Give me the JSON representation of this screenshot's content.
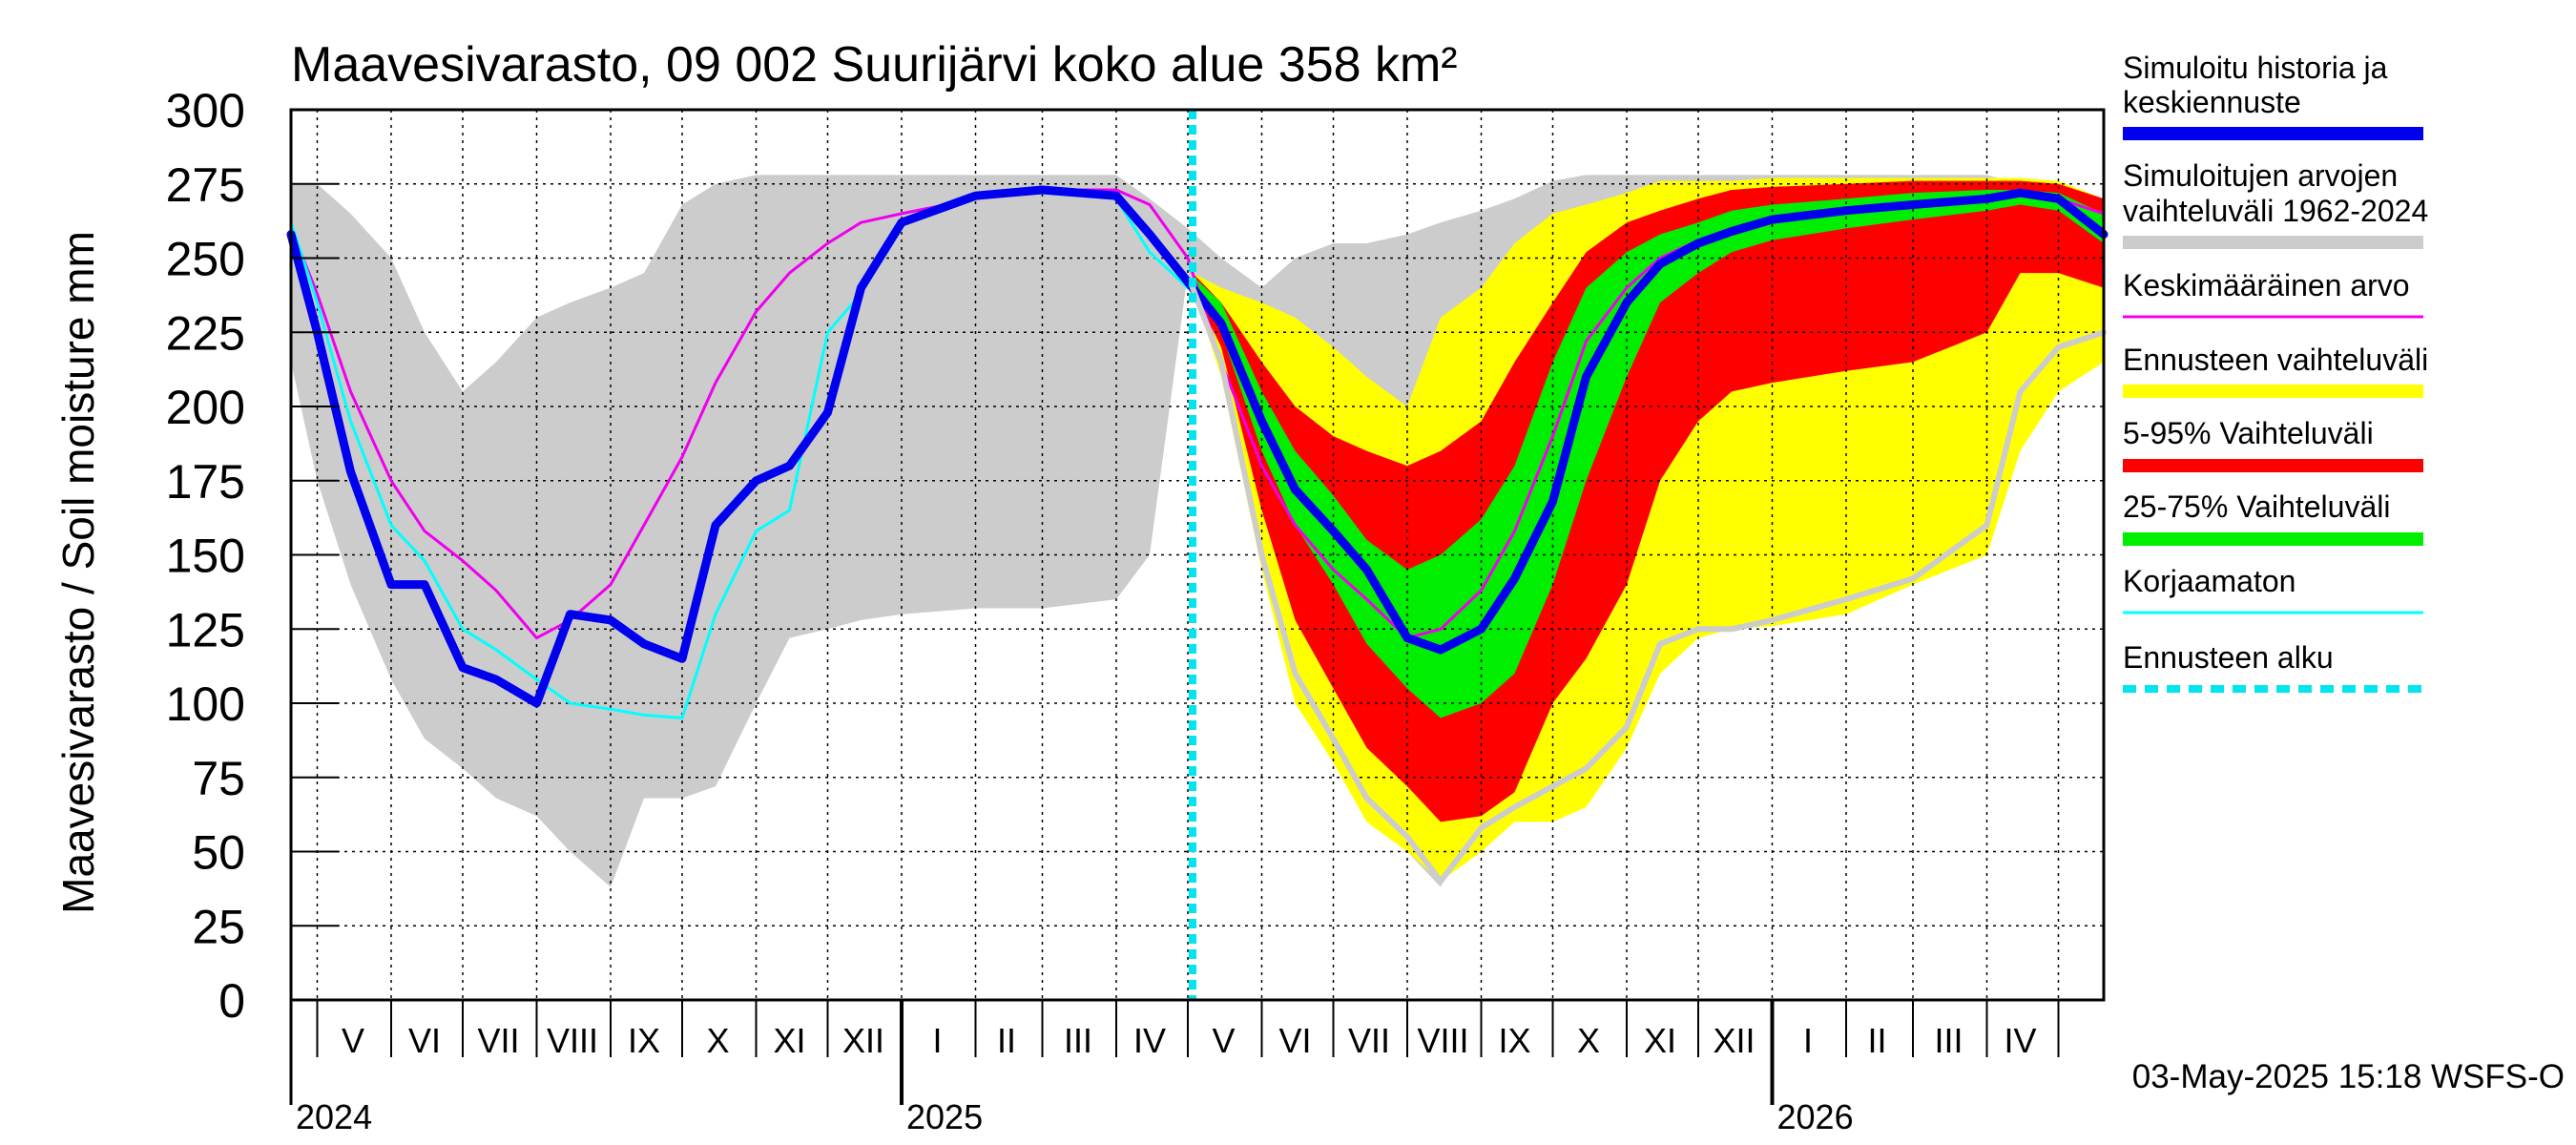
{
  "chart_data": {
    "type": "area",
    "title": "Maavesivarasto, 09 002 Suurijärvi koko alue 358 km²",
    "ylabel": "Maavesivarasto / Soil moisture   mm",
    "xlabel": "",
    "ylim": [
      0,
      300
    ],
    "y_ticks": [
      0,
      25,
      50,
      75,
      100,
      125,
      150,
      175,
      200,
      225,
      250,
      275,
      300
    ],
    "grid": true,
    "legend_position": "right",
    "x_start": "2024-04-20",
    "x_end": "2026-05-20",
    "forecast_start": "2025-05-03",
    "month_labels": [
      {
        "label": "V",
        "date": "2024-05-16"
      },
      {
        "label": "VI",
        "date": "2024-06-15"
      },
      {
        "label": "VII",
        "date": "2024-07-16"
      },
      {
        "label": "VIII",
        "date": "2024-08-16"
      },
      {
        "label": "IX",
        "date": "2024-09-15"
      },
      {
        "label": "X",
        "date": "2024-10-16"
      },
      {
        "label": "XI",
        "date": "2024-11-15"
      },
      {
        "label": "XII",
        "date": "2024-12-16"
      },
      {
        "label": "I",
        "date": "2025-01-16"
      },
      {
        "label": "II",
        "date": "2025-02-14"
      },
      {
        "label": "III",
        "date": "2025-03-16"
      },
      {
        "label": "IV",
        "date": "2025-04-15"
      },
      {
        "label": "V",
        "date": "2025-05-16"
      },
      {
        "label": "VI",
        "date": "2025-06-15"
      },
      {
        "label": "VII",
        "date": "2025-07-16"
      },
      {
        "label": "VIII",
        "date": "2025-08-16"
      },
      {
        "label": "IX",
        "date": "2025-09-15"
      },
      {
        "label": "X",
        "date": "2025-10-16"
      },
      {
        "label": "XI",
        "date": "2025-11-15"
      },
      {
        "label": "XII",
        "date": "2025-12-16"
      },
      {
        "label": "I",
        "date": "2026-01-16"
      },
      {
        "label": "II",
        "date": "2026-02-14"
      },
      {
        "label": "III",
        "date": "2026-03-16"
      },
      {
        "label": "IV",
        "date": "2026-04-15"
      }
    ],
    "year_labels": [
      {
        "label": "2024",
        "date": "2024-04-20"
      },
      {
        "label": "2025",
        "date": "2025-01-01"
      },
      {
        "label": "2026",
        "date": "2026-01-01"
      }
    ],
    "timestamp": "03-May-2025 15:18 WSFS-O",
    "legend": [
      {
        "label": "Simuloitu historia ja\nkeskiennuste",
        "color": "#0000ee",
        "style": "thick"
      },
      {
        "label": "Simuloitujen arvojen\nvaihteluväli 1962-2024",
        "color": "#cccccc",
        "style": "thick"
      },
      {
        "label": "Keskimääräinen arvo",
        "color": "#ee00ee",
        "style": "thin"
      },
      {
        "label": "Ennusteen vaihteluväli",
        "color": "#ffff00",
        "style": "thick"
      },
      {
        "label": "5-95% Vaihteluväli",
        "color": "#ff0000",
        "style": "thick"
      },
      {
        "label": "25-75% Vaihteluväli",
        "color": "#00ee00",
        "style": "thick"
      },
      {
        "label": "Korjaamaton",
        "color": "#00ffff",
        "style": "thin"
      },
      {
        "label": "Ennusteen alku",
        "color": "#00e5ee",
        "style": "dashed"
      }
    ],
    "series": [
      {
        "name": "Simuloitujen arvojen vaihteluväli 1962-2024",
        "kind": "band",
        "color": "#cccccc",
        "x": [
          "2024-04-20",
          "2024-05-01",
          "2024-05-15",
          "2024-06-01",
          "2024-06-15",
          "2024-07-01",
          "2024-07-15",
          "2024-08-01",
          "2024-08-15",
          "2024-09-01",
          "2024-09-15",
          "2024-10-01",
          "2024-10-15",
          "2024-11-01",
          "2024-11-15",
          "2024-12-01",
          "2024-12-15",
          "2025-01-01",
          "2025-02-01",
          "2025-03-01",
          "2025-04-01",
          "2025-04-15",
          "2025-05-01",
          "2025-05-15",
          "2025-06-01",
          "2025-06-15",
          "2025-07-01",
          "2025-07-15",
          "2025-08-01",
          "2025-08-15",
          "2025-09-01",
          "2025-09-15",
          "2025-10-01",
          "2025-10-15",
          "2025-11-01",
          "2025-11-15",
          "2025-12-01",
          "2025-12-15",
          "2026-01-01",
          "2026-02-01",
          "2026-03-01",
          "2026-04-01",
          "2026-04-15",
          "2026-05-01",
          "2026-05-20"
        ],
        "low": [
          215,
          175,
          140,
          108,
          88,
          78,
          68,
          62,
          50,
          38,
          68,
          68,
          72,
          100,
          122,
          125,
          128,
          130,
          132,
          132,
          135,
          150,
          245,
          215,
          150,
          110,
          88,
          65,
          50,
          38,
          68,
          72,
          76,
          80,
          92,
          120,
          125,
          125,
          128,
          135,
          142,
          160,
          200,
          210,
          220
        ],
        "high": [
          275,
          275,
          265,
          250,
          225,
          205,
          215,
          230,
          235,
          240,
          245,
          268,
          275,
          278,
          278,
          278,
          278,
          278,
          278,
          278,
          278,
          270,
          260,
          250,
          240,
          250,
          255,
          255,
          258,
          262,
          266,
          270,
          276,
          278,
          278,
          278,
          278,
          278,
          278,
          278,
          278,
          278,
          275,
          272,
          268
        ]
      },
      {
        "name": "Ennusteen vaihteluväli",
        "kind": "band",
        "color": "#ffff00",
        "x": [
          "2025-05-03",
          "2025-05-15",
          "2025-06-01",
          "2025-06-15",
          "2025-07-01",
          "2025-07-15",
          "2025-08-01",
          "2025-08-15",
          "2025-09-01",
          "2025-09-15",
          "2025-10-01",
          "2025-10-15",
          "2025-11-01",
          "2025-11-15",
          "2025-12-01",
          "2025-12-15",
          "2026-01-01",
          "2026-02-01",
          "2026-03-01",
          "2026-04-01",
          "2026-04-15",
          "2026-05-01",
          "2026-05-20"
        ],
        "low": [
          240,
          210,
          145,
          100,
          80,
          60,
          50,
          40,
          50,
          60,
          60,
          65,
          85,
          110,
          122,
          125,
          126,
          130,
          140,
          150,
          185,
          205,
          215
        ],
        "high": [
          245,
          240,
          235,
          230,
          220,
          210,
          200,
          230,
          240,
          255,
          265,
          268,
          272,
          276,
          276,
          276,
          277,
          277,
          277,
          277,
          277,
          276,
          270
        ]
      },
      {
        "name": "5-95% Vaihteluväli",
        "kind": "band",
        "color": "#ff0000",
        "x": [
          "2025-05-03",
          "2025-05-15",
          "2025-06-01",
          "2025-06-15",
          "2025-07-01",
          "2025-07-15",
          "2025-08-01",
          "2025-08-15",
          "2025-09-01",
          "2025-09-15",
          "2025-10-01",
          "2025-10-15",
          "2025-11-01",
          "2025-11-15",
          "2025-12-01",
          "2025-12-15",
          "2026-01-01",
          "2026-02-01",
          "2026-03-01",
          "2026-04-01",
          "2026-04-15",
          "2026-05-01",
          "2026-05-20"
        ],
        "low": [
          240,
          220,
          165,
          128,
          105,
          85,
          72,
          60,
          62,
          70,
          100,
          115,
          140,
          175,
          195,
          205,
          208,
          212,
          215,
          225,
          245,
          245,
          240
        ],
        "high": [
          245,
          235,
          215,
          200,
          190,
          185,
          180,
          185,
          195,
          215,
          235,
          252,
          262,
          266,
          270,
          273,
          274,
          275,
          276,
          276,
          276,
          275,
          270
        ]
      },
      {
        "name": "25-75% Vaihteluväli",
        "kind": "band",
        "color": "#00ee00",
        "x": [
          "2025-05-03",
          "2025-05-15",
          "2025-06-01",
          "2025-06-15",
          "2025-07-01",
          "2025-07-15",
          "2025-08-01",
          "2025-08-15",
          "2025-09-01",
          "2025-09-15",
          "2025-10-01",
          "2025-10-15",
          "2025-11-01",
          "2025-11-15",
          "2025-12-01",
          "2025-12-15",
          "2026-01-01",
          "2026-02-01",
          "2026-03-01",
          "2026-04-01",
          "2026-04-15",
          "2026-05-01",
          "2026-05-20"
        ],
        "low": [
          242,
          225,
          185,
          160,
          140,
          120,
          105,
          95,
          100,
          110,
          140,
          175,
          210,
          235,
          245,
          252,
          256,
          260,
          263,
          266,
          268,
          266,
          255
        ],
        "high": [
          244,
          235,
          205,
          185,
          170,
          155,
          145,
          150,
          162,
          180,
          215,
          240,
          252,
          258,
          262,
          266,
          268,
          270,
          272,
          273,
          273,
          272,
          265
        ]
      },
      {
        "name": "Keskimääräinen arvo",
        "kind": "line",
        "color": "#ee00ee",
        "width": 3,
        "x": [
          "2024-04-20",
          "2024-05-01",
          "2024-05-15",
          "2024-06-01",
          "2024-06-15",
          "2024-07-01",
          "2024-07-15",
          "2024-08-01",
          "2024-08-15",
          "2024-09-01",
          "2024-09-15",
          "2024-10-01",
          "2024-10-15",
          "2024-11-01",
          "2024-11-15",
          "2024-12-01",
          "2024-12-15",
          "2025-01-01",
          "2025-02-01",
          "2025-03-01",
          "2025-04-01",
          "2025-04-15",
          "2025-05-01",
          "2025-05-15",
          "2025-06-01",
          "2025-06-15",
          "2025-07-01",
          "2025-07-15",
          "2025-08-01",
          "2025-08-15",
          "2025-09-01",
          "2025-09-15",
          "2025-10-01",
          "2025-10-15",
          "2025-11-01",
          "2025-11-15",
          "2025-12-01",
          "2025-12-15",
          "2026-01-01",
          "2026-02-01",
          "2026-03-01",
          "2026-04-01",
          "2026-04-15",
          "2026-05-01",
          "2026-05-20"
        ],
        "y": [
          260,
          238,
          205,
          175,
          158,
          148,
          138,
          122,
          128,
          140,
          160,
          183,
          208,
          232,
          245,
          255,
          262,
          265,
          270,
          273,
          273,
          268,
          250,
          215,
          180,
          160,
          145,
          135,
          122,
          125,
          138,
          158,
          190,
          222,
          240,
          250,
          256,
          260,
          263,
          266,
          268,
          270,
          272,
          270,
          265
        ]
      },
      {
        "name": "Korjaamaton",
        "kind": "line",
        "color": "#00ffff",
        "width": 3,
        "x": [
          "2024-04-20",
          "2024-05-01",
          "2024-05-15",
          "2024-06-01",
          "2024-06-15",
          "2024-07-01",
          "2024-07-15",
          "2024-08-01",
          "2024-08-15",
          "2024-09-01",
          "2024-09-15",
          "2024-10-01",
          "2024-10-15",
          "2024-11-01",
          "2024-11-15",
          "2024-12-01",
          "2024-12-15",
          "2025-01-01",
          "2025-02-01",
          "2025-03-01",
          "2025-04-01",
          "2025-04-15",
          "2025-05-01"
        ],
        "y": [
          262,
          235,
          195,
          160,
          148,
          125,
          118,
          108,
          100,
          98,
          96,
          95,
          130,
          158,
          165,
          225,
          238,
          262,
          271,
          272,
          270,
          252,
          240
        ]
      },
      {
        "name": "Simuloitu historia ja keskiennuste",
        "kind": "line",
        "color": "#0000ee",
        "width": 9,
        "x": [
          "2024-04-20",
          "2024-05-01",
          "2024-05-15",
          "2024-06-01",
          "2024-06-15",
          "2024-07-01",
          "2024-07-15",
          "2024-08-01",
          "2024-08-15",
          "2024-09-01",
          "2024-09-15",
          "2024-10-01",
          "2024-10-15",
          "2024-11-01",
          "2024-11-15",
          "2024-12-01",
          "2024-12-15",
          "2025-01-01",
          "2025-02-01",
          "2025-03-01",
          "2025-04-01",
          "2025-04-15",
          "2025-05-01",
          "2025-05-15",
          "2025-06-01",
          "2025-06-15",
          "2025-07-01",
          "2025-07-15",
          "2025-08-01",
          "2025-08-15",
          "2025-09-01",
          "2025-09-15",
          "2025-10-01",
          "2025-10-15",
          "2025-11-01",
          "2025-11-15",
          "2025-12-01",
          "2025-12-15",
          "2026-01-01",
          "2026-02-01",
          "2026-03-01",
          "2026-04-01",
          "2026-04-15",
          "2026-05-01",
          "2026-05-20"
        ],
        "y": [
          258,
          225,
          178,
          140,
          140,
          112,
          108,
          100,
          130,
          128,
          120,
          115,
          160,
          175,
          180,
          198,
          240,
          262,
          271,
          273,
          271,
          258,
          242,
          228,
          195,
          172,
          158,
          145,
          122,
          118,
          125,
          142,
          168,
          210,
          235,
          248,
          255,
          259,
          263,
          266,
          268,
          270,
          272,
          270,
          258
        ]
      },
      {
        "name": "Simuloitujen arvojen vaihteluväli (min)",
        "kind": "line",
        "color": "#cccccc",
        "width": 6,
        "x": [
          "2025-05-03",
          "2025-05-15",
          "2025-06-01",
          "2025-06-15",
          "2025-07-01",
          "2025-07-15",
          "2025-08-01",
          "2025-08-15",
          "2025-09-01",
          "2025-09-15",
          "2025-10-01",
          "2025-10-15",
          "2025-11-01",
          "2025-11-15",
          "2025-12-01",
          "2025-12-15",
          "2026-01-01",
          "2026-02-01",
          "2026-03-01",
          "2026-04-01",
          "2026-04-15",
          "2026-05-01",
          "2026-05-20"
        ],
        "y": [
          240,
          215,
          150,
          110,
          88,
          68,
          55,
          40,
          58,
          65,
          72,
          78,
          92,
          120,
          125,
          125,
          128,
          135,
          142,
          160,
          205,
          220,
          225
        ]
      }
    ]
  }
}
